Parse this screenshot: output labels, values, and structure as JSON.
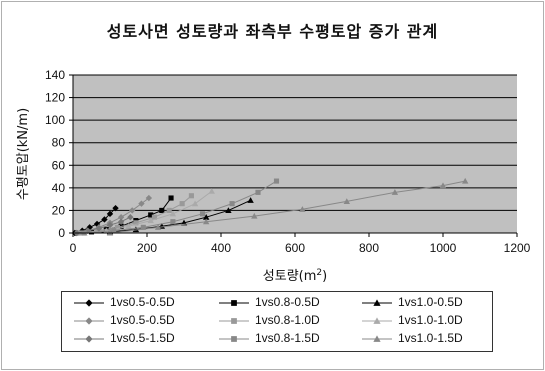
{
  "chart_data": {
    "type": "line",
    "title": "성토사면 성토량과 좌측부 수평토압 증가 관계",
    "xlabel": "성토량(m",
    "xlabel_sup": "2",
    "xlabel_close": ")",
    "ylabel": "수평토압(kN/m)",
    "xlim": [
      0,
      1200
    ],
    "ylim": [
      0,
      140
    ],
    "x_ticks": [
      "0",
      "200",
      "400",
      "600",
      "800",
      "1000",
      "1200"
    ],
    "y_ticks": [
      "0",
      "20",
      "40",
      "60",
      "80",
      "100",
      "120",
      "140"
    ],
    "grid": true,
    "legend_position": "bottom",
    "plot_background": "#c0c0c0",
    "series": [
      {
        "name": "1vs0.5-0.5D",
        "color": "#000000",
        "marker": "diamond",
        "x": [
          5,
          25,
          45,
          65,
          85,
          100,
          115
        ],
        "y": [
          0,
          2,
          5,
          8,
          12,
          17,
          22
        ]
      },
      {
        "name": "1vs0.8-0.5D",
        "color": "#000000",
        "marker": "square",
        "x": [
          10,
          50,
          90,
          130,
          170,
          210,
          240,
          265
        ],
        "y": [
          0,
          1,
          3,
          6,
          11,
          16,
          20,
          31
        ]
      },
      {
        "name": "1vs1.0-0.5D",
        "color": "#000000",
        "marker": "triangle",
        "x": [
          30,
          100,
          170,
          240,
          300,
          360,
          420,
          480
        ],
        "y": [
          0,
          1,
          3,
          6,
          9,
          14,
          20,
          29
        ]
      },
      {
        "name": "1vs0.5-0.5D",
        "color": "#888888",
        "marker": "diamond",
        "x": [
          10,
          40,
          70,
          100,
          130,
          160,
          185,
          205
        ],
        "y": [
          0,
          2,
          5,
          9,
          14,
          20,
          26,
          31
        ]
      },
      {
        "name": "1vs0.8-1.0D",
        "color": "#999999",
        "marker": "square",
        "x": [
          20,
          70,
          120,
          170,
          220,
          260,
          295,
          320
        ],
        "y": [
          0,
          2,
          5,
          9,
          14,
          20,
          26,
          33
        ]
      },
      {
        "name": "1vs1.0-1.0D",
        "color": "#aaaaaa",
        "marker": "triangle",
        "x": [
          30,
          90,
          150,
          210,
          270,
          330,
          375
        ],
        "y": [
          0,
          2,
          6,
          11,
          17,
          26,
          37
        ]
      },
      {
        "name": "1vs0.5-1.5D",
        "color": "#777777",
        "marker": "diamond",
        "x": [
          10,
          40,
          70,
          100,
          130,
          155
        ],
        "y": [
          0,
          2,
          4,
          7,
          10,
          14
        ]
      },
      {
        "name": "1vs0.8-1.5D",
        "color": "#888888",
        "marker": "square",
        "x": [
          30,
          110,
          190,
          270,
          350,
          430,
          500,
          550
        ],
        "y": [
          0,
          2,
          5,
          10,
          17,
          26,
          36,
          46
        ]
      },
      {
        "name": "1vs1.0-1.5D",
        "color": "#888888",
        "marker": "triangle",
        "x": [
          100,
          230,
          360,
          490,
          620,
          740,
          870,
          1000,
          1060
        ],
        "y": [
          0,
          5,
          10,
          15,
          21,
          28,
          36,
          42,
          46
        ]
      }
    ]
  }
}
